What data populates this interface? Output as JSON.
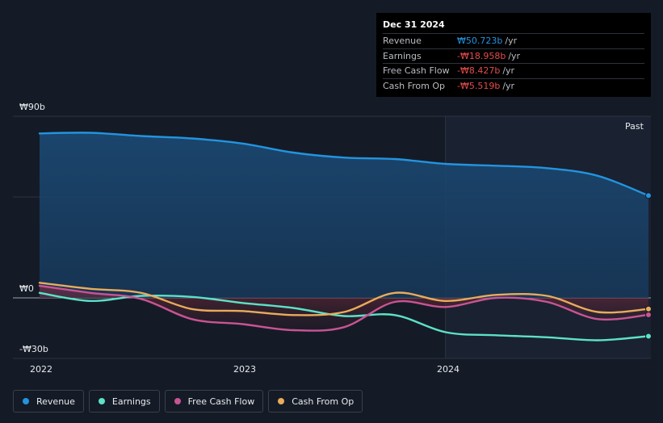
{
  "tooltip": {
    "date": "Dec 31 2024",
    "rows": [
      {
        "label": "Revenue",
        "value": "₩50.723b",
        "unit": "/yr",
        "color": "#2394df"
      },
      {
        "label": "Earnings",
        "value": "-₩18.958b",
        "unit": "/yr",
        "color": "#e64b4b"
      },
      {
        "label": "Free Cash Flow",
        "value": "-₩8.427b",
        "unit": "/yr",
        "color": "#e64b4b"
      },
      {
        "label": "Cash From Op",
        "value": "-₩5.519b",
        "unit": "/yr",
        "color": "#e64b4b"
      }
    ]
  },
  "past_label": "Past",
  "legend": [
    {
      "label": "Revenue",
      "color": "#2394df"
    },
    {
      "label": "Earnings",
      "color": "#5de1c8"
    },
    {
      "label": "Free Cash Flow",
      "color": "#c85494"
    },
    {
      "label": "Cash From Op",
      "color": "#e8ac5c"
    }
  ],
  "chart_data": {
    "type": "line",
    "ylim": [
      -30,
      90
    ],
    "y_ticks": [
      {
        "value": 90,
        "label": "₩90b"
      },
      {
        "value": 0,
        "label": "₩0"
      },
      {
        "value": -30,
        "label": "-₩30b"
      }
    ],
    "x_ticks": [
      {
        "value": 2022.0,
        "label": "2022"
      },
      {
        "value": 2023.0,
        "label": "2023"
      },
      {
        "value": 2024.0,
        "label": "2024"
      }
    ],
    "x_range": [
      2022.0,
      2025.0
    ],
    "past_start": 2024.0,
    "series": [
      {
        "name": "Revenue",
        "color": "#2394df",
        "x": [
          2022.0,
          2022.25,
          2022.5,
          2022.75,
          2023.0,
          2023.25,
          2023.5,
          2023.75,
          2024.0,
          2024.25,
          2024.5,
          2024.75,
          2025.0
        ],
        "y": [
          81.5,
          81.8,
          80.2,
          79,
          76.5,
          72,
          69.5,
          68.8,
          66.4,
          65.5,
          64.3,
          60.5,
          50.7
        ]
      },
      {
        "name": "Earnings",
        "color": "#5de1c8",
        "x": [
          2022.0,
          2022.25,
          2022.5,
          2022.75,
          2023.0,
          2023.25,
          2023.5,
          2023.75,
          2024.0,
          2024.25,
          2024.5,
          2024.75,
          2025.0
        ],
        "y": [
          2.5,
          -1.5,
          1,
          0.5,
          -2.5,
          -5,
          -9,
          -8.5,
          -17,
          -18.5,
          -19.5,
          -21,
          -19
        ]
      },
      {
        "name": "Free Cash Flow",
        "color": "#c85494",
        "x": [
          2022.0,
          2022.25,
          2022.5,
          2022.75,
          2023.0,
          2023.25,
          2023.5,
          2023.75,
          2024.0,
          2024.25,
          2024.5,
          2024.75,
          2025.0
        ],
        "y": [
          6,
          2.5,
          -0.5,
          -10.5,
          -13,
          -16,
          -14.5,
          -2,
          -4.5,
          0,
          -2,
          -10.5,
          -8.4
        ]
      },
      {
        "name": "Cash From Op",
        "color": "#e8ac5c",
        "x": [
          2022.0,
          2022.25,
          2022.5,
          2022.75,
          2023.0,
          2023.25,
          2023.5,
          2023.75,
          2024.0,
          2024.25,
          2024.5,
          2024.75,
          2025.0
        ],
        "y": [
          7.5,
          4.5,
          2.5,
          -5.5,
          -6.5,
          -8.5,
          -7,
          2.5,
          -1.5,
          1.5,
          1,
          -7,
          -5.5
        ]
      }
    ]
  }
}
